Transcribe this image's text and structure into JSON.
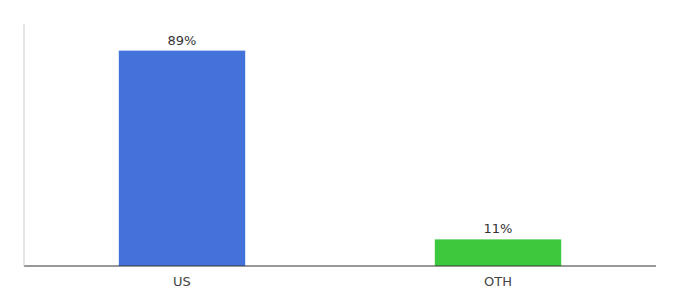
{
  "chart_data": {
    "type": "bar",
    "categories": [
      "US",
      "OTH"
    ],
    "values": [
      89,
      11
    ],
    "value_labels": [
      "89%",
      "11%"
    ],
    "colors": [
      "#4472db",
      "#3dc93d"
    ],
    "ylim": [
      0,
      100
    ],
    "data_labels": true,
    "tick_labels": "x"
  }
}
